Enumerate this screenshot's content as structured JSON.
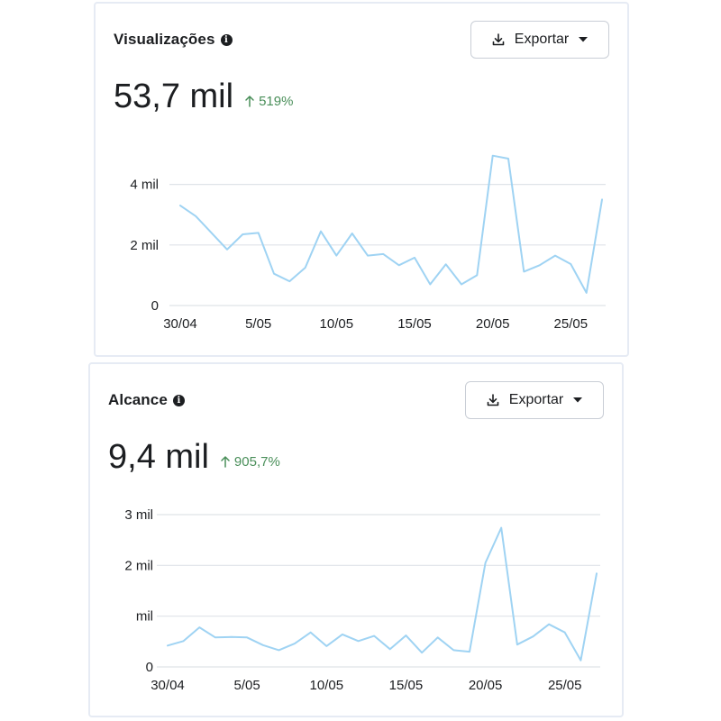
{
  "colors": {
    "line": "#9fd3f3",
    "grid": "#dfe3e8",
    "positive": "#4a8f5a",
    "text": "#1c1e21",
    "border": "#e6ebf4"
  },
  "icons": {
    "info": "info-icon",
    "download": "download-icon",
    "dropdown": "caret-down-icon",
    "trend": "arrow-up-icon"
  },
  "cards": [
    {
      "title": "Visualizações",
      "export_label": "Exportar",
      "total": "53,7 mil",
      "change": "519%"
    },
    {
      "title": "Alcance",
      "export_label": "Exportar",
      "total": "9,4 mil",
      "change": "905,7%"
    }
  ],
  "chart_data": [
    {
      "type": "line",
      "title": "Visualizações",
      "x": [
        "30/04",
        "1/05",
        "2/05",
        "3/05",
        "4/05",
        "5/05",
        "6/05",
        "7/05",
        "8/05",
        "9/05",
        "10/05",
        "11/05",
        "12/05",
        "13/05",
        "14/05",
        "15/05",
        "16/05",
        "17/05",
        "18/05",
        "19/05",
        "20/05",
        "21/05",
        "22/05",
        "23/05",
        "24/05",
        "25/05",
        "26/05",
        "27/05"
      ],
      "x_ticks": [
        "30/04",
        "5/05",
        "10/05",
        "15/05",
        "20/05",
        "25/05"
      ],
      "series": [
        {
          "values": [
            3300,
            2950,
            2400,
            1850,
            2350,
            2400,
            1050,
            800,
            1250,
            2450,
            1650,
            2380,
            1650,
            1700,
            1330,
            1580,
            700,
            1360,
            700,
            1000,
            4950,
            4850,
            1120,
            1330,
            1650,
            1370,
            420,
            3500
          ]
        }
      ],
      "y_ticks": [
        0,
        2000,
        4000
      ],
      "y_tick_labels": [
        "0",
        "2 mil",
        "4 mil"
      ],
      "ylim": [
        0,
        5000
      ],
      "grid": true
    },
    {
      "type": "line",
      "title": "Alcance",
      "x": [
        "30/04",
        "1/05",
        "2/05",
        "3/05",
        "4/05",
        "5/05",
        "6/05",
        "7/05",
        "8/05",
        "9/05",
        "10/05",
        "11/05",
        "12/05",
        "13/05",
        "14/05",
        "15/05",
        "16/05",
        "17/05",
        "18/05",
        "19/05",
        "20/05",
        "21/05",
        "22/05",
        "23/05",
        "24/05",
        "25/05",
        "26/05",
        "27/05"
      ],
      "x_ticks": [
        "30/04",
        "5/05",
        "10/05",
        "15/05",
        "20/05",
        "25/05"
      ],
      "series": [
        {
          "values": [
            420,
            510,
            780,
            580,
            590,
            580,
            430,
            330,
            460,
            680,
            410,
            640,
            510,
            610,
            350,
            620,
            280,
            580,
            330,
            300,
            2050,
            2740,
            440,
            600,
            840,
            680,
            130,
            1840
          ]
        }
      ],
      "y_ticks": [
        0,
        1000,
        2000,
        3000
      ],
      "y_tick_labels": [
        "0",
        "mil",
        "2 mil",
        "3 mil"
      ],
      "ylim": [
        0,
        3000
      ],
      "grid": true
    }
  ]
}
